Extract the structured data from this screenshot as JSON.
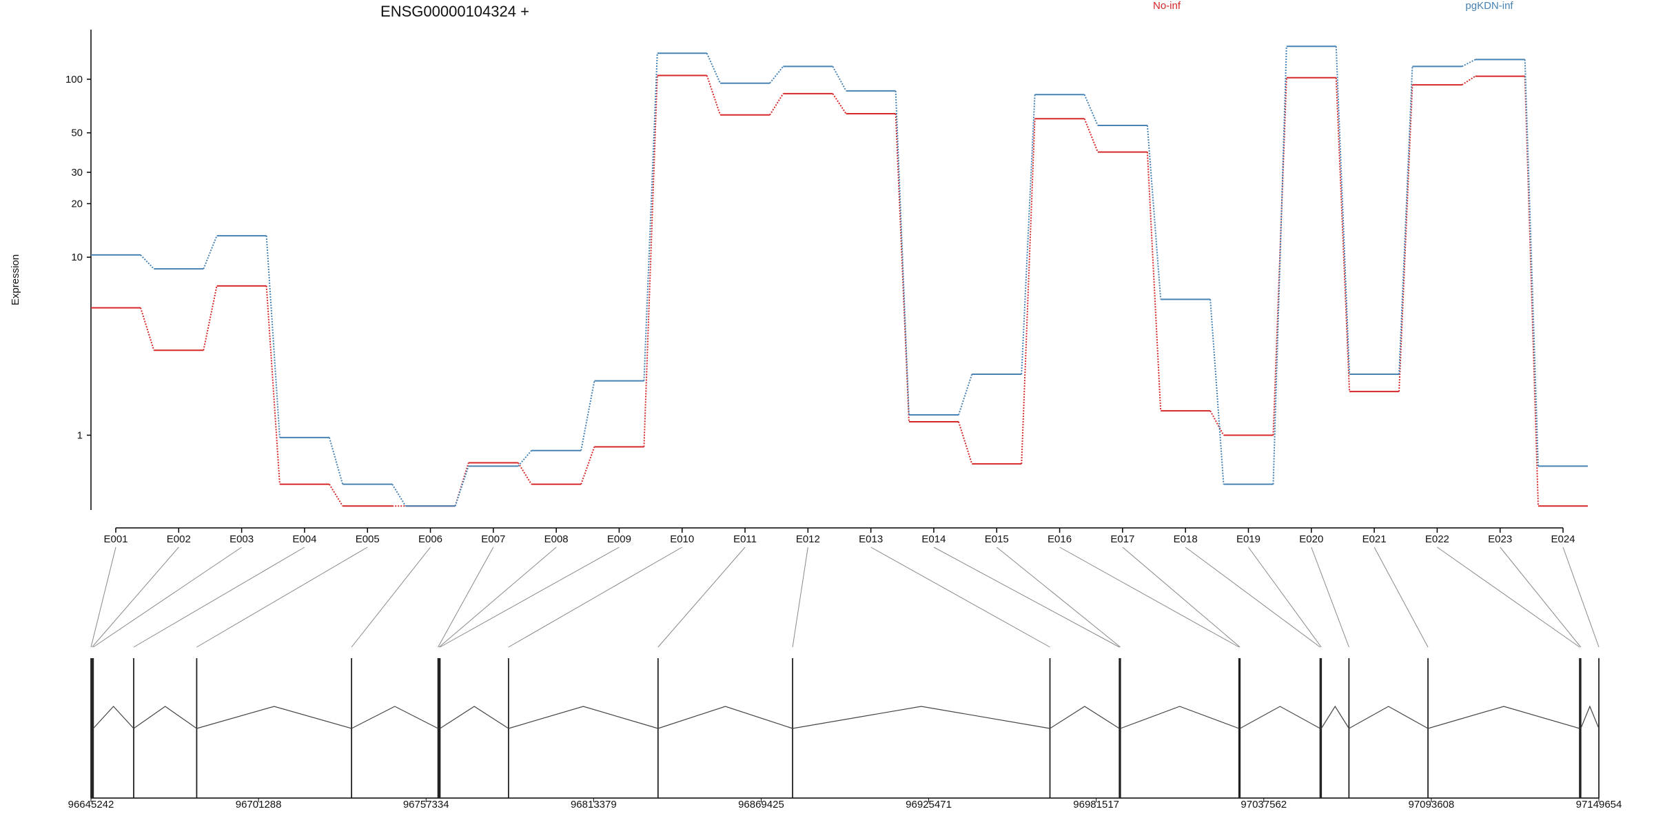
{
  "chart_data": {
    "type": "line",
    "title": "ENSG00000104324 +",
    "y_label": "Expression",
    "y_log": true,
    "categories": [
      "E001",
      "E002",
      "E003",
      "E004",
      "E005",
      "E006",
      "E007",
      "E008",
      "E009",
      "E010",
      "E011",
      "E012",
      "E013",
      "E014",
      "E015",
      "E016",
      "E017",
      "E018",
      "E019",
      "E020",
      "E021",
      "E022",
      "E023",
      "E024"
    ],
    "series": [
      {
        "name": "No-inf",
        "color": "#d62728",
        "values": [
          5.2,
          3.0,
          6.9,
          0.53,
          0.4,
          0.4,
          0.7,
          0.53,
          0.86,
          105,
          63,
          83,
          64,
          1.19,
          0.69,
          60,
          39,
          1.37,
          1.0,
          102,
          1.76,
          93,
          104,
          0.4
        ]
      },
      {
        "name": "pgKDN-inf",
        "color": "#4682b4",
        "values": [
          10.3,
          8.6,
          13.2,
          0.97,
          0.53,
          0.4,
          0.67,
          0.82,
          2.02,
          140,
          95,
          118,
          86,
          1.3,
          2.2,
          82,
          55,
          5.8,
          0.53,
          153,
          2.2,
          118,
          129,
          0.67
        ]
      }
    ],
    "ylim": [
      0.38,
      190
    ],
    "yticks": [
      1,
      10,
      20,
      30,
      50,
      100
    ],
    "exon_positions": [
      96645242,
      96645600,
      96646000,
      96659531,
      96680608,
      96732408,
      96761342,
      96761700,
      96762000,
      96784919,
      96834931,
      96879942,
      96966033,
      96989253,
      96989600,
      97029262,
      97029600,
      97056411,
      97056800,
      97066056,
      97092490,
      97143218,
      97143600,
      97149654
    ],
    "genomic_xlim": [
      96645242,
      97149654
    ],
    "genomic_xticks": [
      96645242,
      96701288,
      96757334,
      96813379,
      96869425,
      96925471,
      96981517,
      97037562,
      97093608,
      97149654
    ]
  }
}
